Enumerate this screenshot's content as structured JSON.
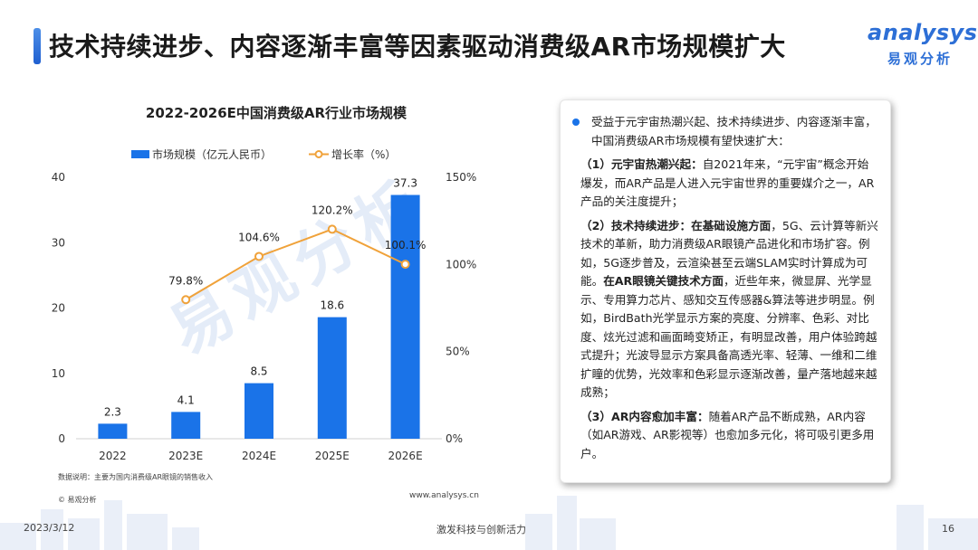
{
  "header": {
    "title": "技术持续进步、内容逐渐丰富等因素驱动消费级AR市场规模扩大"
  },
  "logo": {
    "en": "analysys",
    "cn": "易观分析"
  },
  "colors": {
    "bar": "#1a73e8",
    "line": "#f0a23a",
    "accent": "#2d6fd6"
  },
  "chart_data": {
    "type": "bar",
    "title": "2022-2026E中国消费级AR行业市场规模",
    "categories": [
      "2022",
      "2023E",
      "2024E",
      "2025E",
      "2026E"
    ],
    "series": [
      {
        "name": "市场规模（亿元人民币）",
        "type": "bar",
        "axis": "left",
        "values": [
          2.3,
          4.1,
          8.5,
          18.6,
          37.3
        ],
        "labels": [
          "2.3",
          "4.1",
          "8.5",
          "18.6",
          "37.3"
        ]
      },
      {
        "name": "增长率（%）",
        "type": "line",
        "axis": "right",
        "values": [
          null,
          79.8,
          104.6,
          120.2,
          100.1
        ],
        "labels": [
          "",
          "79.8%",
          "104.6%",
          "120.2%",
          "100.1%"
        ]
      }
    ],
    "ylim_left": [
      0,
      40
    ],
    "ylim_right": [
      0,
      150
    ],
    "yticks_left": [
      "0",
      "10",
      "20",
      "30",
      "40"
    ],
    "yticks_right": [
      "0%",
      "50%",
      "100%",
      "150%"
    ],
    "grid": false,
    "legend": "top"
  },
  "chart_notes": {
    "note": "数据说明：主要为国内消费级AR眼镜的销售收入",
    "copyright": "© 易观分析",
    "website": "www.analysys.cn"
  },
  "panel": {
    "lead": "受益于元宇宙热潮兴起、技术持续进步、内容逐渐丰富，中国消费级AR市场规模有望快速扩大：",
    "p1_head": "（1）元宇宙热潮兴起：",
    "p1_body": "自2021年来，“元宇宙”概念开始爆发，而AR产品是人进入元宇宙世界的重要媒介之一，AR产品的关注度提升；",
    "p2_head": "（2）技术持续进步：",
    "p2_sub1": "在基础设施方面",
    "p2_body1": "，5G、云计算等新兴技术的革新，助力消费级AR眼镜产品进化和市场扩容。例如，5G逐步普及，云渲染甚至云端SLAM实时计算成为可能。",
    "p2_sub2": "在AR眼镜关键技术方面",
    "p2_body2": "，近些年来，微显屏、光学显示、专用算力芯片、感知交互传感器&算法等进步明显。例如，BirdBath光学显示方案的亮度、分辨率、色彩、对比度、炫光过滤和画面畸变矫正，有明显改善，用户体验跨越式提升；光波导显示方案具备高透光率、轻薄、一维和二维扩瞳的优势，光效率和色彩显示逐渐改善，量产落地越来越成熟；",
    "p3_head": "（3）AR内容愈加丰富：",
    "p3_body": "随着AR产品不断成熟，AR内容（如AR游戏、AR影视等）也愈加多元化，将可吸引更多用户。"
  },
  "footer": {
    "date": "2023/3/12",
    "slogan": "激发科技与创新活力",
    "page": "16"
  }
}
